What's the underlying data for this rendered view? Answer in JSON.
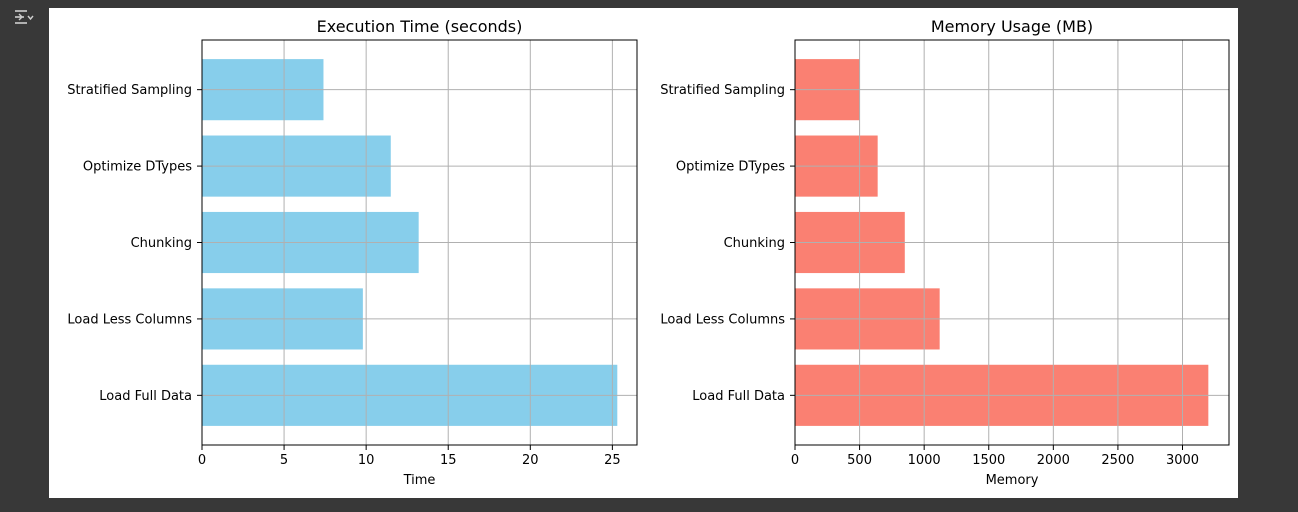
{
  "output_toggle": {
    "icon": "output-collapse-icon"
  },
  "chart_data": [
    {
      "type": "bar",
      "orientation": "horizontal",
      "title": "Execution Time (seconds)",
      "xlabel": "Time",
      "ylabel": "",
      "categories": [
        "Load Full Data",
        "Load Less Columns",
        "Chunking",
        "Optimize DTypes",
        "Stratified Sampling"
      ],
      "values": [
        25.3,
        9.8,
        13.2,
        11.5,
        7.4
      ],
      "xlim": [
        0,
        26.5
      ],
      "xticks": [
        0,
        5,
        10,
        15,
        20,
        25
      ],
      "grid": true,
      "color": "#87CEEB"
    },
    {
      "type": "bar",
      "orientation": "horizontal",
      "title": "Memory Usage (MB)",
      "xlabel": "Memory",
      "ylabel": "",
      "categories": [
        "Load Full Data",
        "Load Less Columns",
        "Chunking",
        "Optimize DTypes",
        "Stratified Sampling"
      ],
      "values": [
        3200,
        1120,
        850,
        640,
        500
      ],
      "xlim": [
        0,
        3360
      ],
      "xticks": [
        0,
        500,
        1000,
        1500,
        2000,
        2500,
        3000
      ],
      "grid": true,
      "color": "#FA8072"
    }
  ]
}
